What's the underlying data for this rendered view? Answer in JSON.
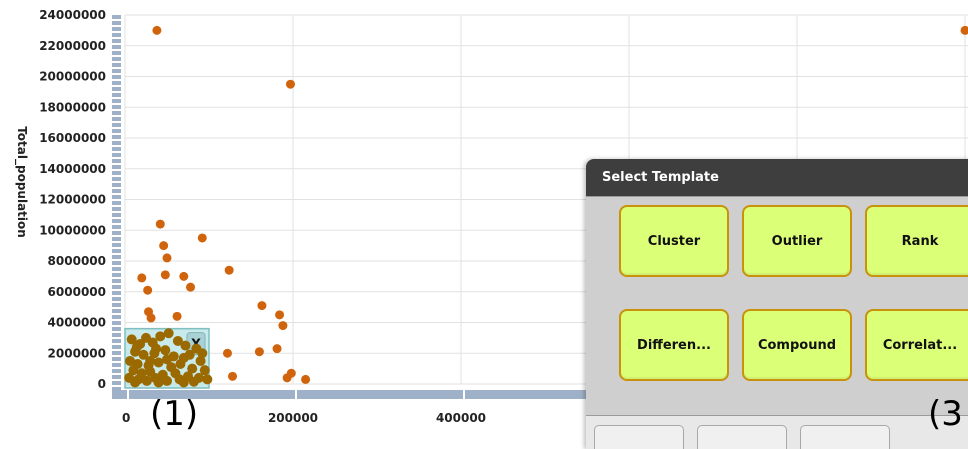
{
  "chart_data": {
    "type": "scatter",
    "ylabel": "Total_population",
    "xlabel": "",
    "yticks": [
      24000000,
      22000000,
      20000000,
      18000000,
      16000000,
      14000000,
      12000000,
      10000000,
      8000000,
      6000000,
      4000000,
      2000000,
      0
    ],
    "xticks": [
      0,
      200000,
      400000
    ],
    "ylim": [
      0,
      24000000
    ],
    "grid": true,
    "point_color": "#d0640c",
    "selected_color": "#9a6a00",
    "selection": {
      "x_range": [
        0,
        100000
      ],
      "y_range": [
        0,
        3600000
      ],
      "close_label": "X"
    },
    "points": [
      [
        38000,
        23000000
      ],
      [
        197000,
        19500000
      ],
      [
        1000000,
        23000000
      ],
      [
        42000,
        10400000
      ],
      [
        92000,
        9500000
      ],
      [
        46000,
        9000000
      ],
      [
        50000,
        8200000
      ],
      [
        124000,
        7400000
      ],
      [
        48000,
        7100000
      ],
      [
        70000,
        7000000
      ],
      [
        20000,
        6900000
      ],
      [
        78000,
        6300000
      ],
      [
        27000,
        6100000
      ],
      [
        163000,
        5100000
      ],
      [
        28000,
        4700000
      ],
      [
        31000,
        4300000
      ],
      [
        62000,
        4400000
      ],
      [
        184000,
        4500000
      ],
      [
        188000,
        3800000
      ],
      [
        122000,
        2000000
      ],
      [
        160000,
        2100000
      ],
      [
        181000,
        2300000
      ],
      [
        198000,
        700000
      ],
      [
        193000,
        400000
      ],
      [
        128000,
        500000
      ],
      [
        215000,
        300000
      ]
    ],
    "selected_points": [
      [
        8000,
        2900000
      ],
      [
        18000,
        2600000
      ],
      [
        25000,
        3000000
      ],
      [
        33000,
        2700000
      ],
      [
        42000,
        3100000
      ],
      [
        52000,
        3300000
      ],
      [
        63000,
        2800000
      ],
      [
        72000,
        2500000
      ],
      [
        85000,
        2300000
      ],
      [
        12000,
        2100000
      ],
      [
        22000,
        1900000
      ],
      [
        35000,
        2000000
      ],
      [
        48000,
        2200000
      ],
      [
        58000,
        1800000
      ],
      [
        70000,
        1700000
      ],
      [
        90000,
        1500000
      ],
      [
        6000,
        1500000
      ],
      [
        15000,
        1300000
      ],
      [
        28000,
        1200000
      ],
      [
        40000,
        1400000
      ],
      [
        55000,
        1100000
      ],
      [
        66000,
        1300000
      ],
      [
        80000,
        1000000
      ],
      [
        95000,
        900000
      ],
      [
        10000,
        900000
      ],
      [
        20000,
        700000
      ],
      [
        30000,
        800000
      ],
      [
        45000,
        600000
      ],
      [
        60000,
        700000
      ],
      [
        75000,
        500000
      ],
      [
        88000,
        400000
      ],
      [
        98000,
        300000
      ],
      [
        5000,
        400000
      ],
      [
        16000,
        300000
      ],
      [
        26000,
        200000
      ],
      [
        36000,
        400000
      ],
      [
        50000,
        200000
      ],
      [
        65000,
        300000
      ],
      [
        82000,
        150000
      ],
      [
        12000,
        100000
      ],
      [
        40000,
        100000
      ],
      [
        70000,
        100000
      ],
      [
        30000,
        1500000
      ],
      [
        50000,
        1600000
      ],
      [
        77000,
        1900000
      ],
      [
        14000,
        2400000
      ],
      [
        37000,
        2300000
      ],
      [
        92000,
        2000000
      ]
    ]
  },
  "dialog": {
    "title": "Select Template",
    "templates": [
      "Cluster",
      "Outlier",
      "Rank",
      "Differen...",
      "Compound",
      "Correlat..."
    ]
  },
  "annotations": {
    "label_1": "(1)",
    "label_3": "(3"
  },
  "colors": {
    "button_fill": "#dcff78",
    "button_border": "#c8920a",
    "header_bg": "#3e3e3e",
    "axis_bar": "#9fb1c8"
  }
}
